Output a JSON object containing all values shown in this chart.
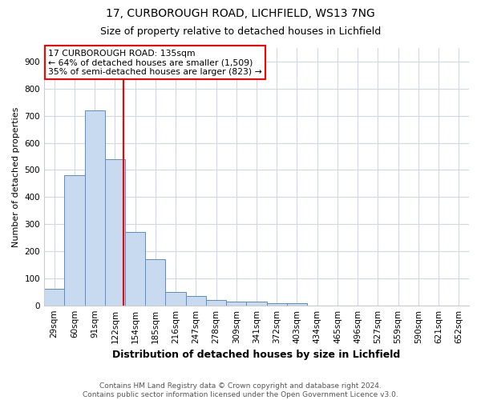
{
  "title_line1": "17, CURBOROUGH ROAD, LICHFIELD, WS13 7NG",
  "title_line2": "Size of property relative to detached houses in Lichfield",
  "xlabel": "Distribution of detached houses by size in Lichfield",
  "ylabel": "Number of detached properties",
  "footnote": "Contains HM Land Registry data © Crown copyright and database right 2024.\nContains public sector information licensed under the Open Government Licence v3.0.",
  "bin_labels": [
    "29sqm",
    "60sqm",
    "91sqm",
    "122sqm",
    "154sqm",
    "185sqm",
    "216sqm",
    "247sqm",
    "278sqm",
    "309sqm",
    "341sqm",
    "372sqm",
    "403sqm",
    "434sqm",
    "465sqm",
    "496sqm",
    "527sqm",
    "559sqm",
    "590sqm",
    "621sqm",
    "652sqm"
  ],
  "bar_values": [
    60,
    480,
    720,
    540,
    270,
    170,
    48,
    35,
    20,
    15,
    13,
    8,
    8,
    0,
    0,
    0,
    0,
    0,
    0,
    0,
    0
  ],
  "bar_color": "#c8daf0",
  "bar_edge_color": "#5b8ec4",
  "annotation_line1": "17 CURBOROUGH ROAD: 135sqm",
  "annotation_line2": "← 64% of detached houses are smaller (1,509)",
  "annotation_line3": "35% of semi-detached houses are larger (823) →",
  "annotation_box_color": "white",
  "annotation_box_edge_color": "red",
  "ylim": [
    0,
    950
  ],
  "yticks": [
    0,
    100,
    200,
    300,
    400,
    500,
    600,
    700,
    800,
    900
  ],
  "red_line_x": 3.41,
  "title1_fontsize": 10,
  "title2_fontsize": 9,
  "ylabel_fontsize": 8,
  "xlabel_fontsize": 9,
  "tick_fontsize": 7.5,
  "annotation_fontsize": 7.8,
  "footnote_fontsize": 6.5
}
